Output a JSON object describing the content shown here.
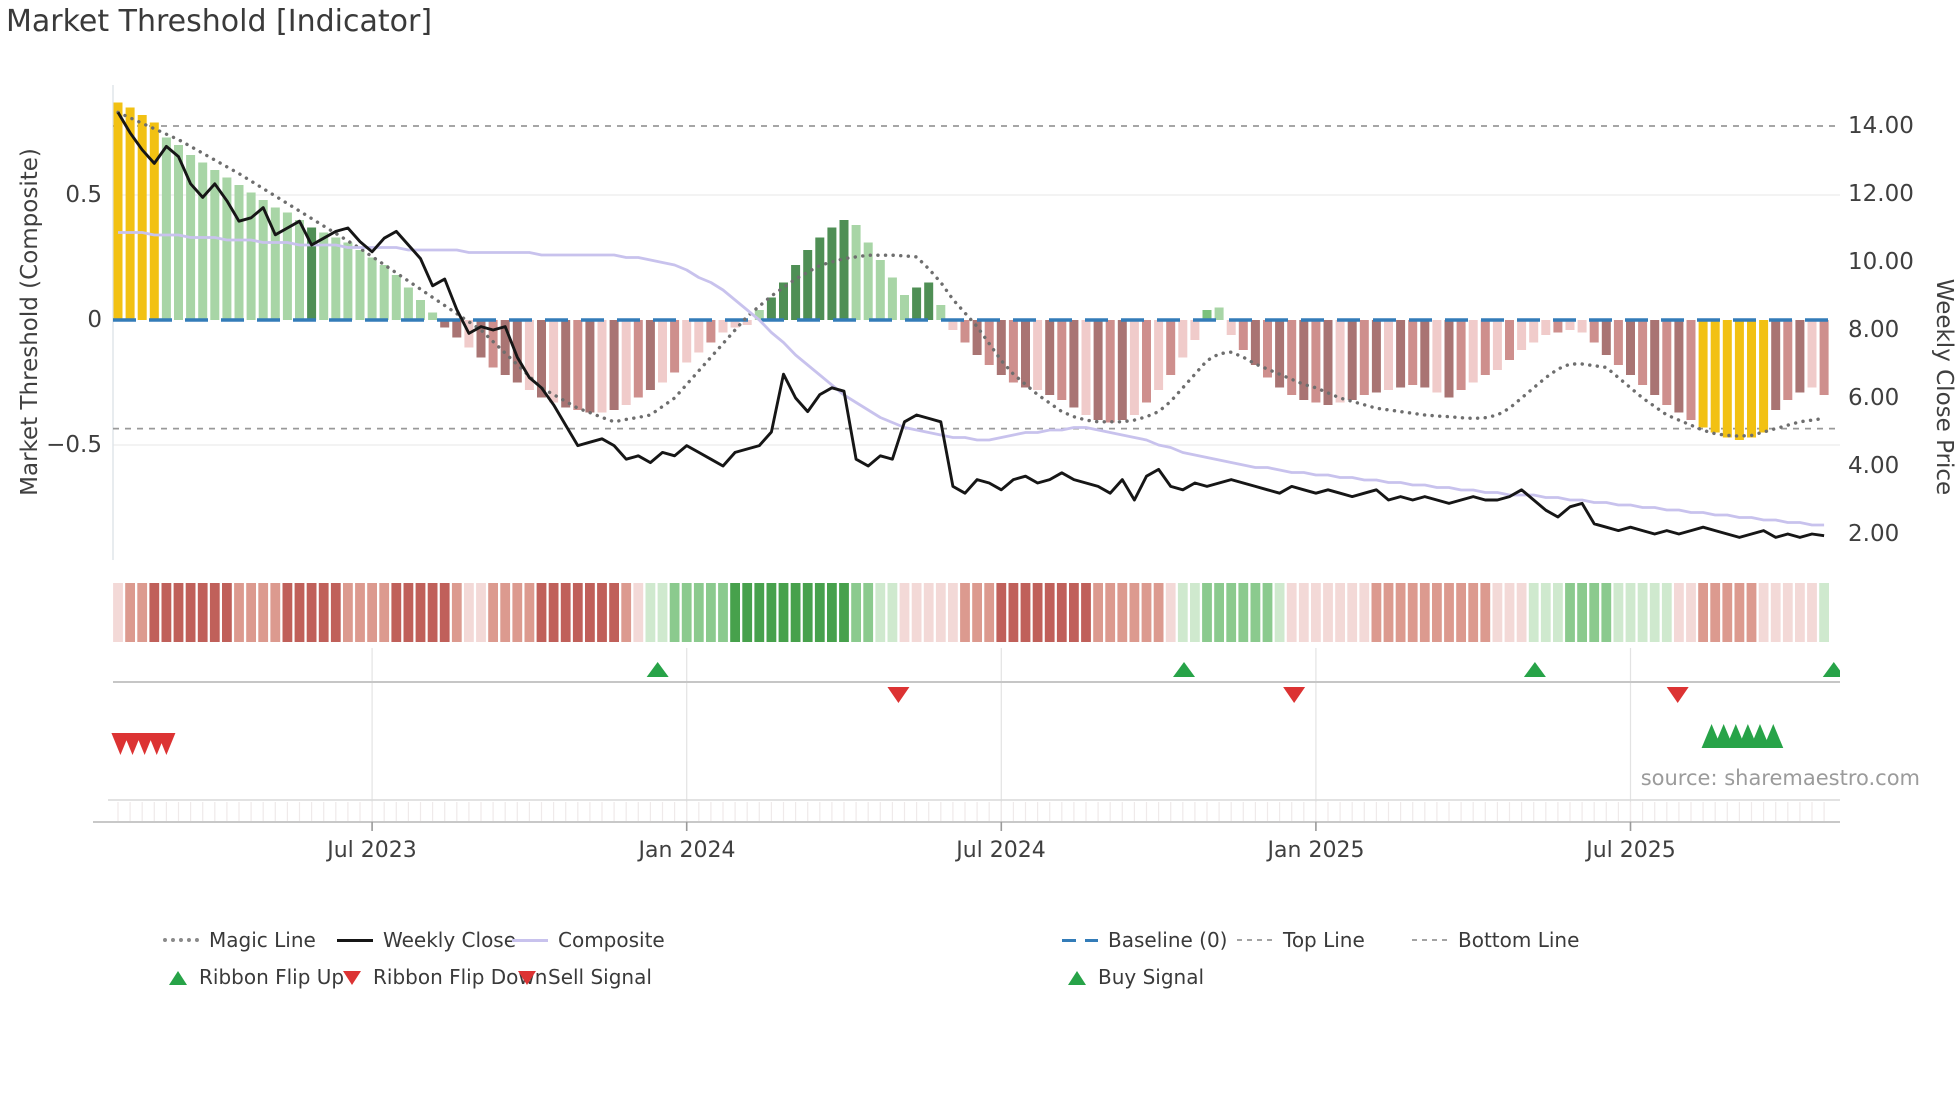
{
  "title": "Market Threshold [Indicator]",
  "source_note": "source: sharemaestro.com",
  "axes": {
    "left_label": "Market Threshold (Composite)",
    "right_label": "Weekly Close Price",
    "left_ticks": [
      "0.5",
      "0",
      "−0.5"
    ],
    "right_ticks": [
      "14.00",
      "12.00",
      "10.00",
      "8.00",
      "6.00",
      "4.00",
      "2.00"
    ],
    "x_ticks": [
      "Jul 2023",
      "Jan 2024",
      "Jul 2024",
      "Jan 2025",
      "Jul 2025"
    ]
  },
  "legend": {
    "magic_line": "Magic Line",
    "weekly_close": "Weekly Close",
    "composite": "Composite",
    "baseline": "Baseline (0)",
    "top_line": "Top Line",
    "bottom_line": "Bottom Line",
    "ribbon_flip_up": "Ribbon Flip Up",
    "ribbon_flip_down": "Ribbon Flip Down",
    "sell_signal": "Sell Signal",
    "buy_signal": "Buy Signal"
  },
  "colors": {
    "baseline_blue": "#337CB8",
    "weekly_close_black": "#161616",
    "composite_lavender": "#C8C2ED",
    "magic_gray": "#6e6e6e",
    "threshold_gray_dash": "#999999",
    "signal_green": "#27A348",
    "signal_red": "#DC3333"
  },
  "chart_data": {
    "type": "mixed",
    "title": "Market Threshold [Indicator]",
    "x_axis": {
      "unit": "week",
      "n_weeks": 142,
      "tick_labels": [
        "Jul 2023",
        "Jan 2024",
        "Jul 2024",
        "Jan 2025",
        "Jul 2025"
      ],
      "tick_week_indices": [
        21,
        47,
        73,
        99,
        125
      ]
    },
    "left_axis": {
      "label": "Market Threshold (Composite)",
      "ticks": [
        0.5,
        0,
        -0.5
      ],
      "range": [
        -0.95,
        0.95
      ]
    },
    "right_axis": {
      "label": "Weekly Close Price",
      "ticks": [
        14,
        12,
        10,
        8,
        6,
        4,
        2
      ],
      "range": [
        0.5,
        15.5
      ]
    },
    "baseline_value": 0,
    "top_line_price": 14.0,
    "bottom_line_price": 5.1,
    "threshold_bars": {
      "palette": {
        "Y": "#F2C113",
        "g1": "#A8D5A6",
        "g2": "#7BC27B",
        "g3": "#4F8F55",
        "p1": "#F0CBCA",
        "p2": "#CE8F8D",
        "p3": "#A97473"
      },
      "values": [
        0.87,
        0.85,
        0.82,
        0.79,
        0.73,
        0.7,
        0.66,
        0.63,
        0.6,
        0.57,
        0.54,
        0.51,
        0.48,
        0.45,
        0.43,
        0.4,
        0.37,
        0.35,
        0.33,
        0.31,
        0.28,
        0.25,
        0.22,
        0.18,
        0.13,
        0.08,
        0.03,
        -0.03,
        -0.07,
        -0.11,
        -0.15,
        -0.19,
        -0.22,
        -0.25,
        -0.28,
        -0.31,
        -0.33,
        -0.35,
        -0.36,
        -0.37,
        -0.37,
        -0.36,
        -0.34,
        -0.31,
        -0.28,
        -0.25,
        -0.21,
        -0.17,
        -0.13,
        -0.09,
        -0.05,
        -0.03,
        -0.02,
        0.04,
        0.09,
        0.15,
        0.22,
        0.28,
        0.33,
        0.37,
        0.4,
        0.38,
        0.31,
        0.24,
        0.17,
        0.1,
        0.13,
        0.15,
        0.06,
        -0.04,
        -0.09,
        -0.14,
        -0.18,
        -0.22,
        -0.25,
        -0.27,
        -0.28,
        -0.3,
        -0.32,
        -0.35,
        -0.38,
        -0.4,
        -0.41,
        -0.4,
        -0.38,
        -0.33,
        -0.28,
        -0.22,
        -0.15,
        -0.08,
        0.04,
        0.05,
        -0.06,
        -0.12,
        -0.18,
        -0.23,
        -0.27,
        -0.3,
        -0.32,
        -0.33,
        -0.34,
        -0.33,
        -0.32,
        -0.3,
        -0.29,
        -0.28,
        -0.27,
        -0.26,
        -0.27,
        -0.29,
        -0.31,
        -0.28,
        -0.25,
        -0.22,
        -0.2,
        -0.16,
        -0.12,
        -0.09,
        -0.06,
        -0.05,
        -0.04,
        -0.05,
        -0.09,
        -0.14,
        -0.18,
        -0.22,
        -0.26,
        -0.3,
        -0.34,
        -0.37,
        -0.4,
        -0.43,
        -0.45,
        -0.47,
        -0.48,
        -0.47,
        -0.45,
        -0.36,
        -0.32,
        -0.29,
        -0.27,
        -0.3
      ],
      "colors": [
        "Y",
        "Y",
        "Y",
        "Y",
        "g1",
        "g1",
        "g1",
        "g1",
        "g1",
        "g1",
        "g1",
        "g1",
        "g1",
        "g1",
        "g1",
        "g1",
        "g3",
        "g1",
        "g1",
        "g1",
        "g1",
        "g1",
        "g1",
        "g1",
        "g1",
        "g1",
        "g1",
        "p3",
        "p3",
        "p1",
        "p3",
        "p2",
        "p3",
        "p3",
        "p1",
        "p3",
        "p1",
        "p3",
        "p2",
        "p3",
        "p1",
        "p3",
        "p1",
        "p2",
        "p3",
        "p1",
        "p2",
        "p1",
        "p1",
        "p2",
        "p1",
        "p1",
        "p1",
        "g1",
        "g3",
        "g3",
        "g3",
        "g3",
        "g3",
        "g3",
        "g3",
        "g1",
        "g1",
        "g1",
        "g1",
        "g1",
        "g3",
        "g3",
        "g1",
        "p1",
        "p2",
        "p3",
        "p2",
        "p3",
        "p2",
        "p3",
        "p1",
        "p3",
        "p2",
        "p3",
        "p1",
        "p3",
        "p2",
        "p3",
        "p1",
        "p2",
        "p1",
        "p2",
        "p1",
        "p1",
        "g2",
        "g1",
        "p1",
        "p2",
        "p3",
        "p2",
        "p3",
        "p2",
        "p3",
        "p2",
        "p3",
        "p1",
        "p3",
        "p2",
        "p3",
        "p1",
        "p3",
        "p2",
        "p3",
        "p1",
        "p3",
        "p2",
        "p1",
        "p2",
        "p1",
        "p2",
        "p1",
        "p1",
        "p1",
        "p2",
        "p1",
        "p1",
        "p2",
        "p3",
        "p2",
        "p3",
        "p2",
        "p3",
        "p2",
        "p3",
        "p2",
        "Y",
        "Y",
        "Y",
        "Y",
        "Y",
        "Y",
        "p3",
        "p2",
        "p3",
        "p1",
        "p2"
      ]
    },
    "weekly_close": [
      14.4,
      13.8,
      13.3,
      12.9,
      13.4,
      13.1,
      12.3,
      11.9,
      12.3,
      11.8,
      11.2,
      11.3,
      11.6,
      10.8,
      11.0,
      11.2,
      10.5,
      10.7,
      10.9,
      11.0,
      10.6,
      10.3,
      10.7,
      10.9,
      10.5,
      10.1,
      9.3,
      9.5,
      8.6,
      7.9,
      8.1,
      8.0,
      8.1,
      7.2,
      6.6,
      6.3,
      5.8,
      5.2,
      4.6,
      4.7,
      4.8,
      4.6,
      4.2,
      4.3,
      4.1,
      4.4,
      4.3,
      4.6,
      4.4,
      4.2,
      4.0,
      4.4,
      4.5,
      4.6,
      5.0,
      6.7,
      6.0,
      5.6,
      6.1,
      6.3,
      6.2,
      4.2,
      4.0,
      4.3,
      4.2,
      5.3,
      5.5,
      5.4,
      5.3,
      3.4,
      3.2,
      3.6,
      3.5,
      3.3,
      3.6,
      3.7,
      3.5,
      3.6,
      3.8,
      3.6,
      3.5,
      3.4,
      3.2,
      3.6,
      3.0,
      3.7,
      3.9,
      3.4,
      3.3,
      3.5,
      3.4,
      3.5,
      3.6,
      3.5,
      3.4,
      3.3,
      3.2,
      3.4,
      3.3,
      3.2,
      3.3,
      3.2,
      3.1,
      3.2,
      3.3,
      3.0,
      3.1,
      3.0,
      3.1,
      3.0,
      2.9,
      3.0,
      3.1,
      3.0,
      3.0,
      3.1,
      3.3,
      3.0,
      2.7,
      2.5,
      2.8,
      2.9,
      2.3,
      2.2,
      2.1,
      2.2,
      2.1,
      2.0,
      2.1,
      2.0,
      2.1,
      2.2,
      2.1,
      2.0,
      1.9,
      2.0,
      2.1,
      1.9,
      2.0,
      1.9,
      2.0,
      1.95
    ],
    "composite": [
      0.35,
      0.35,
      0.35,
      0.34,
      0.34,
      0.34,
      0.33,
      0.33,
      0.33,
      0.32,
      0.32,
      0.32,
      0.31,
      0.31,
      0.31,
      0.3,
      0.3,
      0.3,
      0.3,
      0.29,
      0.29,
      0.29,
      0.29,
      0.29,
      0.28,
      0.28,
      0.28,
      0.28,
      0.28,
      0.27,
      0.27,
      0.27,
      0.27,
      0.27,
      0.27,
      0.26,
      0.26,
      0.26,
      0.26,
      0.26,
      0.26,
      0.26,
      0.25,
      0.25,
      0.24,
      0.23,
      0.22,
      0.2,
      0.17,
      0.15,
      0.12,
      0.08,
      0.04,
      0.0,
      -0.05,
      -0.09,
      -0.14,
      -0.18,
      -0.22,
      -0.26,
      -0.3,
      -0.33,
      -0.36,
      -0.39,
      -0.41,
      -0.43,
      -0.44,
      -0.45,
      -0.46,
      -0.47,
      -0.47,
      -0.48,
      -0.48,
      -0.47,
      -0.46,
      -0.45,
      -0.45,
      -0.44,
      -0.44,
      -0.43,
      -0.43,
      -0.44,
      -0.45,
      -0.46,
      -0.47,
      -0.48,
      -0.5,
      -0.51,
      -0.53,
      -0.54,
      -0.55,
      -0.56,
      -0.57,
      -0.58,
      -0.59,
      -0.59,
      -0.6,
      -0.61,
      -0.61,
      -0.62,
      -0.62,
      -0.63,
      -0.63,
      -0.64,
      -0.64,
      -0.65,
      -0.65,
      -0.66,
      -0.66,
      -0.67,
      -0.67,
      -0.68,
      -0.68,
      -0.69,
      -0.69,
      -0.7,
      -0.7,
      -0.7,
      -0.71,
      -0.71,
      -0.72,
      -0.72,
      -0.73,
      -0.73,
      -0.74,
      -0.74,
      -0.75,
      -0.75,
      -0.76,
      -0.76,
      -0.77,
      -0.77,
      -0.78,
      -0.78,
      -0.79,
      -0.79,
      -0.8,
      -0.8,
      -0.81,
      -0.81,
      -0.82,
      -0.82
    ],
    "magic_line": [
      14.4,
      14.24,
      14.08,
      13.92,
      13.76,
      13.6,
      13.4,
      13.2,
      13.0,
      12.8,
      12.6,
      12.38,
      12.16,
      11.94,
      11.72,
      11.5,
      11.28,
      11.06,
      10.84,
      10.62,
      10.4,
      10.16,
      9.92,
      9.68,
      9.44,
      9.2,
      8.96,
      8.72,
      8.48,
      8.24,
      8.0,
      7.66,
      7.32,
      6.98,
      6.64,
      6.3,
      6.1,
      5.9,
      5.7,
      5.57,
      5.43,
      5.3,
      5.37,
      5.43,
      5.5,
      5.75,
      6.0,
      6.4,
      6.8,
      7.2,
      7.6,
      8.0,
      8.4,
      8.7,
      9.0,
      9.25,
      9.5,
      9.7,
      9.9,
      10.0,
      10.1,
      10.15,
      10.2,
      10.2,
      10.2,
      10.18,
      10.15,
      9.8,
      9.4,
      8.9,
      8.5,
      8.1,
      7.6,
      7.1,
      6.7,
      6.4,
      6.1,
      5.85,
      5.6,
      5.45,
      5.35,
      5.3,
      5.3,
      5.3,
      5.35,
      5.45,
      5.6,
      5.9,
      6.3,
      6.7,
      7.1,
      7.3,
      7.35,
      7.2,
      7.0,
      6.85,
      6.7,
      6.55,
      6.4,
      6.3,
      6.15,
      6.0,
      5.9,
      5.8,
      5.7,
      5.65,
      5.6,
      5.55,
      5.5,
      5.47,
      5.45,
      5.42,
      5.4,
      5.42,
      5.5,
      5.7,
      6.0,
      6.3,
      6.6,
      6.85,
      7.0,
      7.0,
      6.95,
      6.9,
      6.6,
      6.3,
      6.0,
      5.75,
      5.5,
      5.35,
      5.2,
      5.05,
      4.95,
      4.9,
      4.88,
      4.9,
      5.0,
      5.1,
      5.2,
      5.3,
      5.35,
      5.4
    ],
    "ribbon": {
      "palette": {
        "r1": "#F3D9D7",
        "r2": "#DC9A8F",
        "r3": "#C0605A",
        "g1": "#CFE9CE",
        "g2": "#8BCA8E",
        "g3": "#47A14C"
      },
      "colors": [
        "r1",
        "r2",
        "r2",
        "r3",
        "r3",
        "r3",
        "r3",
        "r3",
        "r3",
        "r3",
        "r2",
        "r2",
        "r2",
        "r2",
        "r3",
        "r3",
        "r3",
        "r3",
        "r3",
        "r2",
        "r2",
        "r2",
        "r2",
        "r3",
        "r3",
        "r3",
        "r3",
        "r3",
        "r2",
        "r1",
        "r1",
        "r2",
        "r2",
        "r2",
        "r2",
        "r3",
        "r3",
        "r3",
        "r3",
        "r3",
        "r3",
        "r3",
        "r2",
        "r1",
        "g1",
        "g1",
        "g2",
        "g2",
        "g2",
        "g2",
        "g2",
        "g3",
        "g3",
        "g3",
        "g3",
        "g3",
        "g3",
        "g3",
        "g3",
        "g3",
        "g3",
        "g2",
        "g2",
        "g1",
        "g1",
        "r1",
        "r1",
        "r1",
        "r1",
        "r1",
        "r2",
        "r2",
        "r2",
        "r3",
        "r3",
        "r3",
        "r3",
        "r3",
        "r3",
        "r3",
        "r3",
        "r2",
        "r2",
        "r2",
        "r2",
        "r2",
        "r2",
        "r1",
        "g1",
        "g1",
        "g2",
        "g2",
        "g2",
        "g2",
        "g2",
        "g2",
        "g1",
        "r1",
        "r1",
        "r1",
        "r1",
        "r1",
        "r1",
        "r1",
        "r2",
        "r2",
        "r2",
        "r2",
        "r2",
        "r2",
        "r2",
        "r2",
        "r2",
        "r2",
        "r1",
        "r1",
        "r1",
        "g1",
        "g1",
        "g1",
        "g2",
        "g2",
        "g2",
        "g2",
        "g1",
        "g1",
        "g1",
        "g1",
        "g1",
        "r1",
        "r1",
        "r2",
        "r2",
        "r2",
        "r2",
        "r2",
        "r1",
        "r1",
        "r1",
        "r1",
        "r1",
        "g1"
      ]
    },
    "signals": {
      "flip_up_weeks": [
        44.6,
        88.1,
        117.1,
        141.8
      ],
      "flip_down_weeks": [
        64.5,
        97.2,
        128.9
      ],
      "sell_signal_weeks": [
        0.2,
        1.2,
        2.2,
        3.2,
        4.0
      ],
      "buy_signal_weeks": [
        131.7,
        132.7,
        133.7,
        134.7,
        135.7,
        136.8
      ]
    }
  }
}
